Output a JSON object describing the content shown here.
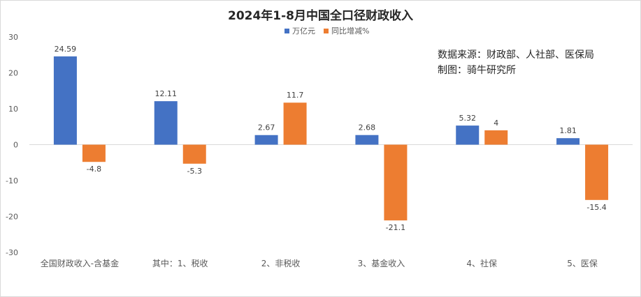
{
  "chart_data": {
    "type": "bar",
    "title": "2024年1-8月中国全口径财政收入",
    "categories": [
      "全国财政收入-含基金",
      "其中：1、税收",
      "2、非税收",
      "3、基金收入",
      "4、社保",
      "5、医保"
    ],
    "series": [
      {
        "name": "万亿元",
        "values": [
          24.59,
          12.11,
          2.67,
          2.68,
          5.32,
          1.81
        ],
        "color": "#4472c4"
      },
      {
        "name": "同比增减%",
        "values": [
          -4.8,
          -5.3,
          11.7,
          -21.1,
          4,
          -15.4
        ],
        "color": "#ed7d31"
      }
    ],
    "data_labels": [
      [
        "24.59",
        "12.11",
        "2.67",
        "2.68",
        "5.32",
        "1.81"
      ],
      [
        "-4.8",
        "-5.3",
        "11.7",
        "-21.1",
        "4",
        "-15.4"
      ]
    ],
    "ylim": [
      -30,
      30
    ],
    "yticks": [
      30,
      20,
      10,
      0,
      -10,
      -20,
      -30
    ],
    "grid": false,
    "legend_position": "top"
  },
  "annotations": {
    "source": "数据来源：财政部、人社部、医保局",
    "credit": "制图：骑牛研究所"
  }
}
